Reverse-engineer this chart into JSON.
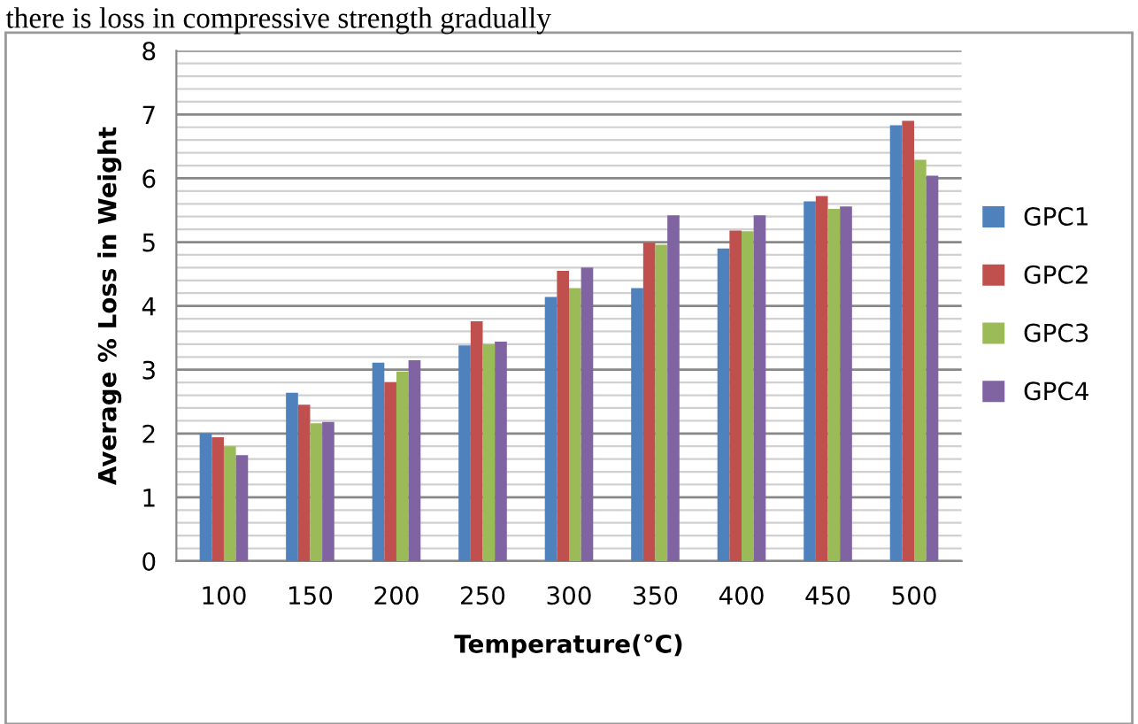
{
  "chart_data": {
    "type": "bar",
    "annotations": [
      "there is loss in compressive strength gradually"
    ],
    "xlabel": "Temperature(°C)",
    "ylabel": "Average % Loss in Weight",
    "categories": [
      "100",
      "150",
      "200",
      "250",
      "300",
      "350",
      "400",
      "450",
      "500"
    ],
    "series": [
      {
        "name": "GPC1",
        "color": "#4f81bd",
        "values": [
          2.0,
          2.64,
          3.11,
          3.38,
          4.14,
          4.28,
          4.9,
          5.64,
          6.83
        ]
      },
      {
        "name": "GPC2",
        "color": "#c0504d",
        "values": [
          1.94,
          2.45,
          2.8,
          3.76,
          4.55,
          4.99,
          5.18,
          5.72,
          6.9
        ]
      },
      {
        "name": "GPC3",
        "color": "#9bbb59",
        "values": [
          1.8,
          2.16,
          2.97,
          3.4,
          4.28,
          4.96,
          5.17,
          5.52,
          6.29
        ]
      },
      {
        "name": "GPC4",
        "color": "#8064a2",
        "values": [
          1.66,
          2.18,
          3.15,
          3.44,
          4.6,
          5.42,
          5.42,
          5.56,
          6.04
        ]
      }
    ],
    "ylim": [
      0,
      8
    ],
    "yticks": [
      0,
      {
        "value": 0.2,
        "label": null
      },
      {
        "value": 0.4,
        "label": null
      },
      {
        "value": 0.6,
        "label": null
      },
      {
        "value": 0.8,
        "label": null
      },
      1,
      {
        "value": 1.2,
        "label": null
      },
      {
        "value": 1.4,
        "label": null
      },
      {
        "value": 1.6,
        "label": null
      },
      {
        "value": 1.8,
        "label": null
      },
      2,
      {
        "value": 2.2,
        "label": null
      },
      {
        "value": 2.4,
        "label": null
      },
      {
        "value": 2.6,
        "label": null
      },
      {
        "value": 2.8,
        "label": null
      },
      3,
      {
        "value": 3.2,
        "label": null
      },
      {
        "value": 3.4,
        "label": null
      },
      {
        "value": 3.6,
        "label": null
      },
      {
        "value": 3.8,
        "label": null
      },
      4,
      {
        "value": 4.2,
        "label": null
      },
      {
        "value": 4.4,
        "label": null
      },
      {
        "value": 4.6,
        "label": null
      },
      {
        "value": 4.8,
        "label": null
      },
      5,
      {
        "value": 5.2,
        "label": null
      },
      {
        "value": 5.4,
        "label": null
      },
      {
        "value": 5.6,
        "label": null
      },
      {
        "value": 5.8,
        "label": null
      },
      6,
      {
        "value": 6.2,
        "label": null
      },
      {
        "value": 6.4,
        "label": null
      },
      {
        "value": 6.6,
        "label": null
      },
      {
        "value": 6.8,
        "label": null
      },
      7,
      {
        "value": 7.2,
        "label": null
      },
      {
        "value": 7.4,
        "label": null
      },
      {
        "value": 7.6,
        "label": null
      },
      {
        "value": 7.8,
        "label": null
      },
      8
    ],
    "grid": "y",
    "legend": "right"
  }
}
